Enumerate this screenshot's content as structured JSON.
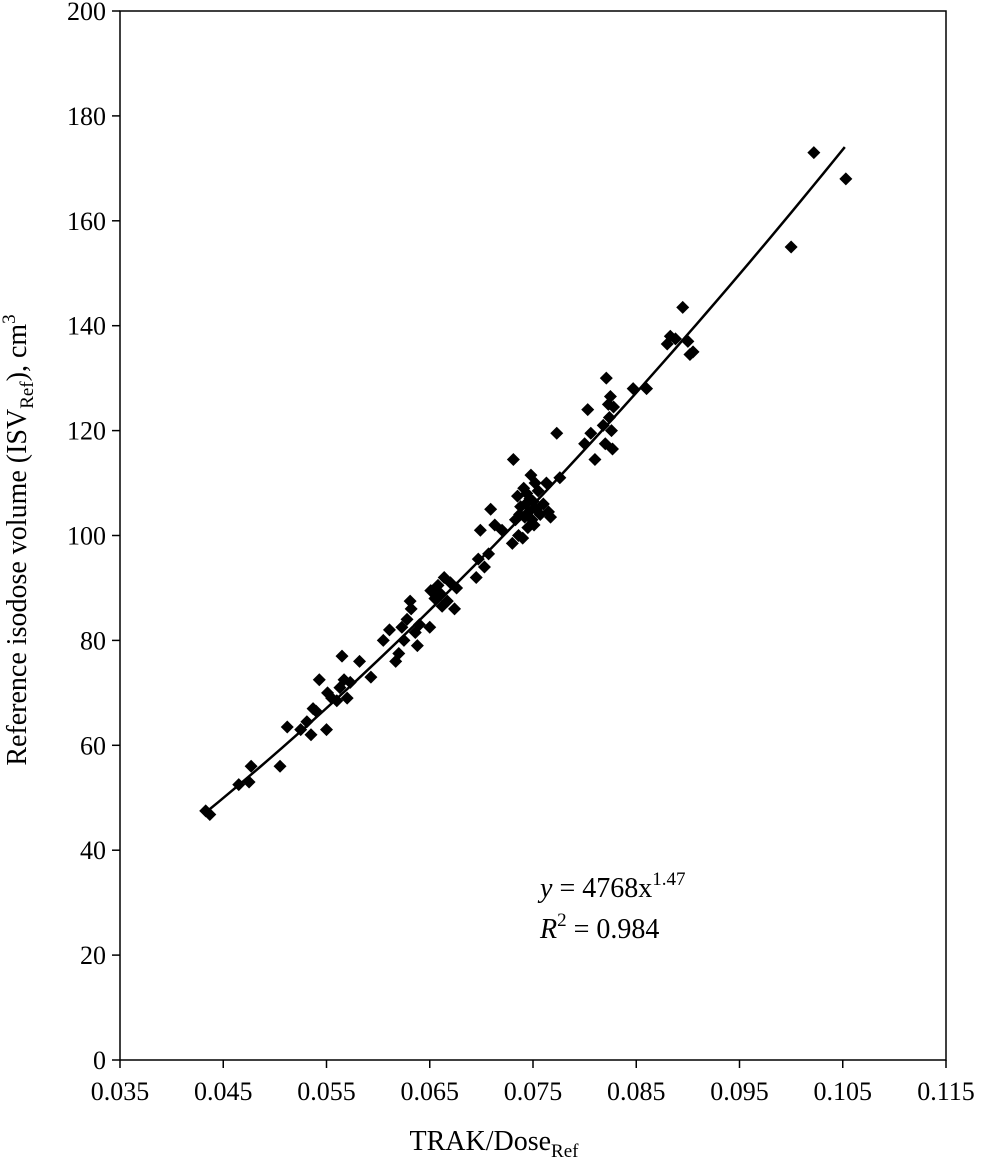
{
  "chart_data": {
    "type": "scatter",
    "xlabel": {
      "main": "TRAK/Dose",
      "sub": "Ref"
    },
    "ylabel": {
      "prefix": "Reference isodose volume (ISV",
      "sub": "Ref",
      "suffix": "), cm",
      "sup": "3"
    },
    "xlim": [
      0.035,
      0.115
    ],
    "ylim": [
      0,
      200
    ],
    "xticks": [
      "0.035",
      "0.045",
      "0.055",
      "0.065",
      "0.075",
      "0.085",
      "0.095",
      "0.105",
      "0.115"
    ],
    "yticks": [
      "0",
      "20",
      "40",
      "60",
      "80",
      "100",
      "120",
      "140",
      "160",
      "180",
      "200"
    ],
    "grid": false,
    "fit": {
      "type": "power",
      "a": 4768,
      "b": 1.47,
      "x_range": [
        0.0435,
        0.1052
      ],
      "equation": {
        "y": "y",
        "eq": " = 4768x",
        "exp": "1.47"
      },
      "r2": {
        "r": "R",
        "exp": "2",
        "eq": " = 0.984"
      }
    },
    "points": [
      [
        0.0433,
        47.5
      ],
      [
        0.0437,
        46.8
      ],
      [
        0.0465,
        52.5
      ],
      [
        0.0475,
        53.0
      ],
      [
        0.0477,
        56.0
      ],
      [
        0.0505,
        56.0
      ],
      [
        0.0512,
        63.5
      ],
      [
        0.0525,
        63.0
      ],
      [
        0.0531,
        64.5
      ],
      [
        0.0535,
        62.0
      ],
      [
        0.0537,
        67.0
      ],
      [
        0.054,
        66.5
      ],
      [
        0.0543,
        72.5
      ],
      [
        0.055,
        63.0
      ],
      [
        0.0551,
        70.0
      ],
      [
        0.0555,
        69.0
      ],
      [
        0.056,
        68.5
      ],
      [
        0.0563,
        71.0
      ],
      [
        0.0565,
        77.0
      ],
      [
        0.0567,
        72.5
      ],
      [
        0.057,
        69.0
      ],
      [
        0.0573,
        72.0
      ],
      [
        0.0582,
        76.0
      ],
      [
        0.0593,
        73.0
      ],
      [
        0.0605,
        80.0
      ],
      [
        0.0611,
        82.0
      ],
      [
        0.0617,
        76.0
      ],
      [
        0.062,
        77.5
      ],
      [
        0.0623,
        82.5
      ],
      [
        0.0625,
        80.0
      ],
      [
        0.0628,
        84.0
      ],
      [
        0.0631,
        87.5
      ],
      [
        0.0632,
        86.0
      ],
      [
        0.0636,
        81.5
      ],
      [
        0.0638,
        79.0
      ],
      [
        0.064,
        83.0
      ],
      [
        0.065,
        82.5
      ],
      [
        0.0651,
        89.5
      ],
      [
        0.0655,
        88.0
      ],
      [
        0.0658,
        90.5
      ],
      [
        0.066,
        89.0
      ],
      [
        0.0662,
        86.5
      ],
      [
        0.0664,
        92.0
      ],
      [
        0.0667,
        87.5
      ],
      [
        0.067,
        91.0
      ],
      [
        0.0674,
        86.0
      ],
      [
        0.0676,
        90.0
      ],
      [
        0.0695,
        92.0
      ],
      [
        0.0697,
        95.5
      ],
      [
        0.0699,
        101.0
      ],
      [
        0.0703,
        94.0
      ],
      [
        0.0707,
        96.5
      ],
      [
        0.0709,
        105.0
      ],
      [
        0.0713,
        102.0
      ],
      [
        0.072,
        101.0
      ],
      [
        0.073,
        98.5
      ],
      [
        0.0731,
        114.5
      ],
      [
        0.0733,
        103.0
      ],
      [
        0.0735,
        107.5
      ],
      [
        0.0736,
        100.0
      ],
      [
        0.0737,
        104.0
      ],
      [
        0.0738,
        105.5
      ],
      [
        0.074,
        99.5
      ],
      [
        0.0741,
        109.0
      ],
      [
        0.0742,
        103.5
      ],
      [
        0.0743,
        106.0
      ],
      [
        0.0744,
        108.0
      ],
      [
        0.0745,
        101.5
      ],
      [
        0.0746,
        104.5
      ],
      [
        0.0747,
        107.0
      ],
      [
        0.0748,
        111.5
      ],
      [
        0.0749,
        103.0
      ],
      [
        0.075,
        106.5
      ],
      [
        0.0751,
        102.0
      ],
      [
        0.0752,
        110.0
      ],
      [
        0.0753,
        105.0
      ],
      [
        0.0755,
        108.5
      ],
      [
        0.0757,
        104.0
      ],
      [
        0.076,
        106.0
      ],
      [
        0.0763,
        110.0
      ],
      [
        0.0765,
        104.5
      ],
      [
        0.0767,
        103.5
      ],
      [
        0.0773,
        119.5
      ],
      [
        0.0776,
        111.0
      ],
      [
        0.08,
        117.5
      ],
      [
        0.0803,
        124.0
      ],
      [
        0.0806,
        119.5
      ],
      [
        0.081,
        114.5
      ],
      [
        0.0818,
        121.0
      ],
      [
        0.082,
        117.5
      ],
      [
        0.0821,
        130.0
      ],
      [
        0.0823,
        125.0
      ],
      [
        0.0824,
        122.5
      ],
      [
        0.0825,
        126.5
      ],
      [
        0.0826,
        120.0
      ],
      [
        0.0827,
        116.5
      ],
      [
        0.0828,
        124.5
      ],
      [
        0.0847,
        128.0
      ],
      [
        0.086,
        128.0
      ],
      [
        0.088,
        136.5
      ],
      [
        0.0883,
        138.0
      ],
      [
        0.0888,
        137.5
      ],
      [
        0.0895,
        143.5
      ],
      [
        0.09,
        137.0
      ],
      [
        0.0902,
        134.5
      ],
      [
        0.0905,
        135.0
      ],
      [
        0.1,
        155.0
      ],
      [
        0.1022,
        173.0
      ],
      [
        0.1053,
        168.0
      ]
    ]
  }
}
